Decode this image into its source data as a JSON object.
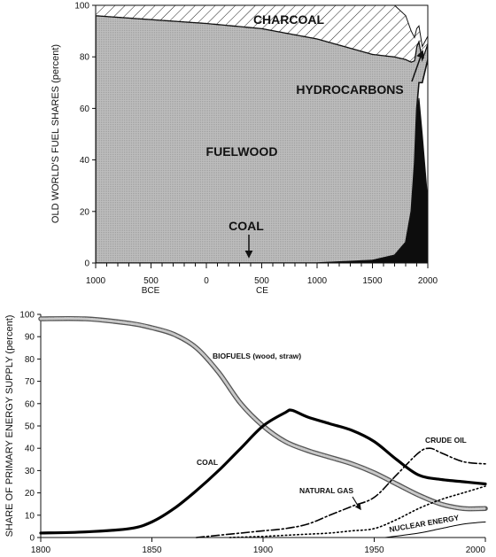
{
  "chart_data": [
    {
      "type": "area",
      "ylabel": "OLD WORLD'S FUEL SHARES (percent)",
      "ylim": [
        0,
        100
      ],
      "xlim": [
        -1000,
        2000
      ],
      "y_ticks": [
        "0",
        "20",
        "40",
        "60",
        "80",
        "100"
      ],
      "x_ticks": [
        "1000",
        "500",
        "0",
        "500",
        "1000",
        "1500",
        "2000"
      ],
      "era_labels": [
        "BCE",
        "CE"
      ],
      "series": [
        {
          "name": "COAL",
          "x": [
            -1000,
            1000,
            1500,
            1700,
            1800,
            1850,
            1880,
            1900,
            1920,
            1950,
            2000
          ],
          "values": [
            0,
            0,
            1,
            3,
            8,
            20,
            38,
            58,
            64,
            50,
            24
          ]
        },
        {
          "name": "HYDROCARBONS",
          "x": [
            1850,
            1880,
            1900,
            1920,
            1950,
            2000
          ],
          "values": [
            0,
            0.5,
            2,
            6,
            20,
            55
          ]
        },
        {
          "name": "FUELWOOD",
          "x": [
            -1000,
            0,
            500,
            1000,
            1500,
            1700,
            1800,
            1850,
            1880,
            1900,
            1920,
            1950,
            2000
          ],
          "values": [
            96,
            93,
            91,
            87,
            80,
            77,
            71,
            58,
            40,
            24,
            16,
            9,
            6
          ]
        },
        {
          "name": "CHARCOAL",
          "x": [
            -1000,
            0,
            500,
            1000,
            1500,
            1700,
            1800,
            1850,
            1880,
            1900,
            1920,
            1950,
            2000
          ],
          "values": [
            4,
            7,
            9,
            13,
            19,
            20,
            17,
            12,
            9,
            7,
            6,
            5,
            3
          ]
        }
      ],
      "annotations": [
        "CHARCOAL",
        "HYDROCARBONS",
        "FUELWOOD",
        "COAL"
      ]
    },
    {
      "type": "line",
      "ylabel": "SHARE OF PRIMARY ENERGY SUPPLY (percent)",
      "ylim": [
        0,
        100
      ],
      "xlim": [
        1800,
        2000
      ],
      "y_ticks": [
        "0",
        "10",
        "20",
        "30",
        "40",
        "50",
        "60",
        "70",
        "80",
        "90",
        "100"
      ],
      "x_ticks": [
        "1800",
        "1850",
        "1900",
        "1950",
        "2000"
      ],
      "series": [
        {
          "name": "BIOFUELS (wood, straw)",
          "x": [
            1800,
            1820,
            1840,
            1850,
            1860,
            1870,
            1880,
            1890,
            1900,
            1910,
            1920,
            1930,
            1940,
            1950,
            1960,
            1970,
            1980,
            1990,
            2000
          ],
          "values": [
            98,
            98,
            96,
            94,
            91,
            85,
            74,
            60,
            50,
            43,
            39,
            36,
            33,
            29,
            24,
            19,
            15,
            13,
            13
          ]
        },
        {
          "name": "COAL",
          "x": [
            1800,
            1820,
            1840,
            1850,
            1860,
            1870,
            1880,
            1890,
            1900,
            1910,
            1913,
            1920,
            1930,
            1940,
            1950,
            1960,
            1970,
            1980,
            1990,
            2000
          ],
          "values": [
            2,
            2.5,
            4,
            7,
            13,
            21,
            30,
            40,
            50,
            56,
            57,
            54,
            51,
            48,
            43,
            35,
            28,
            26,
            25,
            24
          ]
        },
        {
          "name": "CRUDE OIL",
          "x": [
            1870,
            1880,
            1890,
            1900,
            1910,
            1920,
            1930,
            1940,
            1950,
            1960,
            1970,
            1975,
            1980,
            1990,
            2000
          ],
          "values": [
            0,
            1,
            2,
            3,
            4,
            6,
            10,
            14,
            18,
            28,
            38,
            40,
            38,
            34,
            33
          ]
        },
        {
          "name": "NATURAL GAS",
          "x": [
            1885,
            1900,
            1910,
            1920,
            1930,
            1940,
            1950,
            1960,
            1970,
            1980,
            1990,
            2000
          ],
          "values": [
            0,
            0.5,
            1,
            1.5,
            2,
            3,
            4,
            8,
            13,
            17,
            20,
            23
          ]
        },
        {
          "name": "NUCLEAR ENERGY",
          "x": [
            1955,
            1970,
            1980,
            1990,
            2000
          ],
          "values": [
            0,
            2,
            4,
            6,
            7
          ]
        }
      ],
      "labels": {
        "biofuels": "BIOFUELS (wood, straw)",
        "coal": "COAL",
        "crude_oil": "CRUDE OIL",
        "natural_gas": "NATURAL GAS",
        "nuclear": "NUCLEAR ENERGY"
      }
    }
  ]
}
